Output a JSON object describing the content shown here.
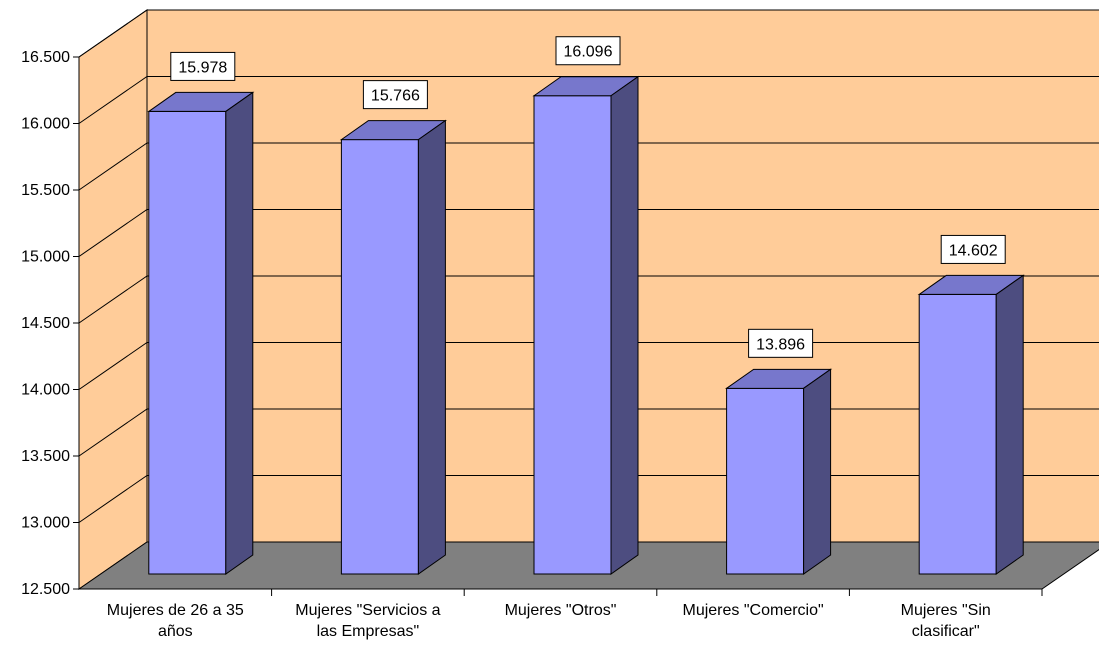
{
  "chart_data": {
    "type": "bar",
    "categories": [
      [
        "Mujeres de 26 a 35",
        "años"
      ],
      [
        "Mujeres \"Servicios a",
        "las Empresas\""
      ],
      [
        "Mujeres \"Otros\""
      ],
      [
        "Mujeres \"Comercio\""
      ],
      [
        "Mujeres \"Sin",
        "clasificar\""
      ]
    ],
    "values": [
      15978,
      15766,
      16096,
      13896,
      14602
    ],
    "value_labels": [
      "15.978",
      "15.766",
      "16.096",
      "13.896",
      "14.602"
    ],
    "y_ticks": [
      12500,
      13000,
      13500,
      14000,
      14500,
      15000,
      15500,
      16000,
      16500
    ],
    "y_tick_labels": [
      "12.500",
      "13.000",
      "13.500",
      "14.000",
      "14.500",
      "15.000",
      "15.500",
      "16.000",
      "16.500"
    ],
    "ylim": [
      12500,
      16500
    ],
    "title": "",
    "xlabel": "",
    "ylabel": "",
    "grid": true,
    "legend": "none",
    "style": "3d-column",
    "colors": {
      "wall": "#FFCC99",
      "floor": "#808080",
      "bar_front": "#9999FF",
      "bar_top": "#7777CC",
      "bar_side": "#4D4D80",
      "grid": "#000000",
      "label_box": "#FFFFFF"
    }
  }
}
